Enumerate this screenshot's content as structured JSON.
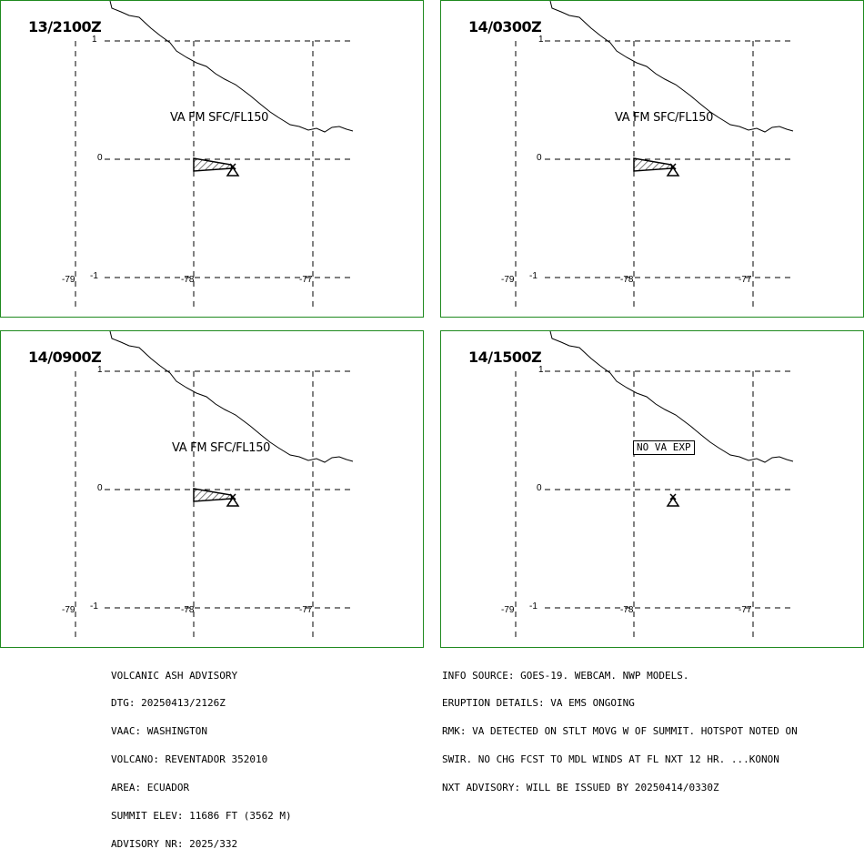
{
  "panels": [
    {
      "time": "13/2100Z",
      "label": "VA FM SFC/FL150",
      "ash": true
    },
    {
      "time": "14/0300Z",
      "label": "VA FM SFC/FL150",
      "ash": true
    },
    {
      "time": "14/0900Z",
      "label": "VA FM SFC/FL150",
      "ash": true
    },
    {
      "time": "14/1500Z",
      "label": "NO VA EXP",
      "ash": false
    }
  ],
  "axes": {
    "lat_labels": [
      "1",
      "0",
      "-1"
    ],
    "lon_labels": [
      "-79",
      "-78",
      "-77"
    ]
  },
  "advisory_left": [
    "VOLCANIC ASH ADVISORY",
    "DTG: 20250413/2126Z",
    "VAAC: WASHINGTON",
    "VOLCANO: REVENTADOR 352010",
    "AREA: ECUADOR",
    "SUMMIT ELEV: 11686 FT (3562 M)",
    "ADVISORY NR: 2025/332"
  ],
  "advisory_right": [
    "INFO SOURCE: GOES-19. WEBCAM. NWP MODELS.",
    "ERUPTION DETAILS: VA EMS ONGOING",
    "RMK: VA DETECTED ON STLT MOVG W OF SUMMIT. HOTSPOT NOTED ON",
    "SWIR. NO CHG FCST TO MDL WINDS AT FL NXT 12 HR. ...KONON",
    "NXT ADVISORY: WILL BE ISSUED BY 20250414/0330Z"
  ],
  "colors": {
    "panel_border": "#1f8a1f",
    "lines": "#000000"
  }
}
